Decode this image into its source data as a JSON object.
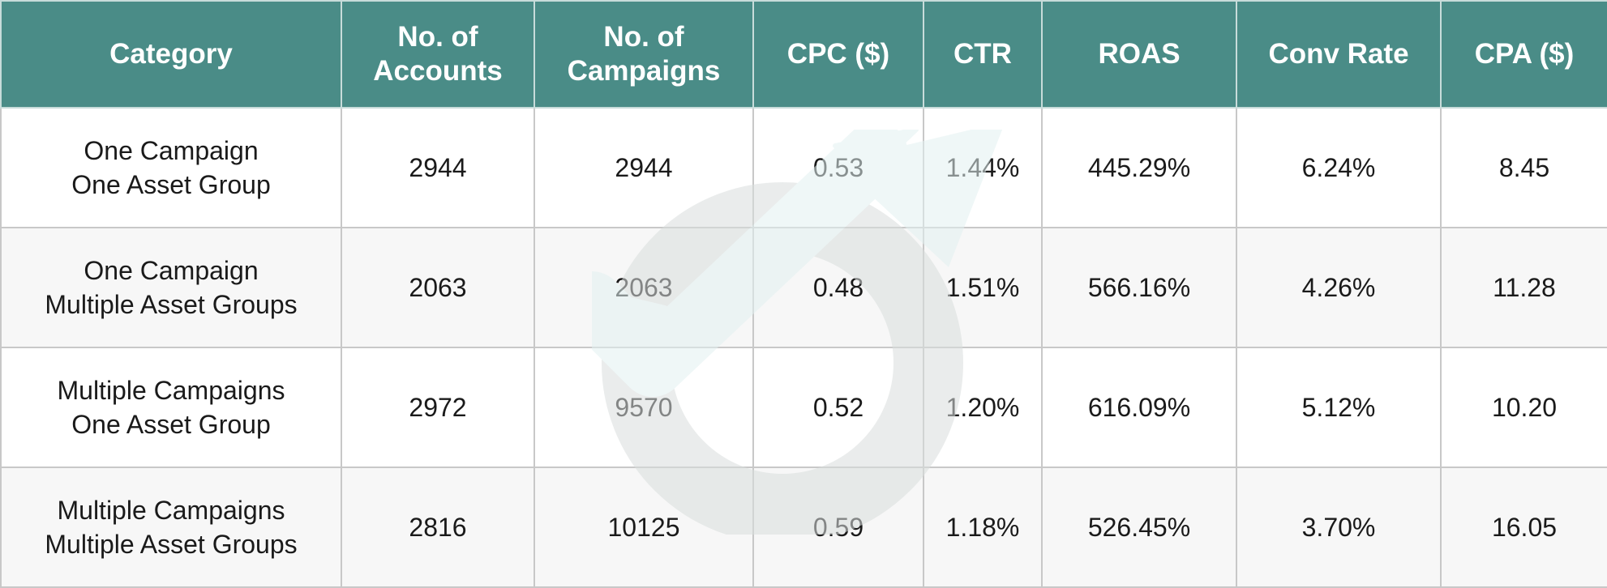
{
  "chart_data": {
    "type": "table",
    "title": "",
    "columns": [
      [
        "Category"
      ],
      [
        "No. of",
        "Accounts"
      ],
      [
        "No. of",
        "Campaigns"
      ],
      [
        "CPC ($)"
      ],
      [
        "CTR"
      ],
      [
        "ROAS"
      ],
      [
        "Conv Rate"
      ],
      [
        "CPA ($)"
      ]
    ],
    "rows": [
      {
        "category": [
          "One Campaign",
          "One Asset Group"
        ],
        "cells": [
          "2944",
          "2944",
          "0.53",
          "1.44%",
          "445.29%",
          "6.24%",
          "8.45"
        ]
      },
      {
        "category": [
          "One Campaign",
          "Multiple Asset Groups"
        ],
        "cells": [
          "2063",
          "2063",
          "0.48",
          "1.51%",
          "566.16%",
          "4.26%",
          "11.28"
        ]
      },
      {
        "category": [
          "Multiple Campaigns",
          "One Asset Group"
        ],
        "cells": [
          "2972",
          "9570",
          "0.52",
          "1.20%",
          "616.09%",
          "5.12%",
          "10.20"
        ]
      },
      {
        "category": [
          "Multiple Campaigns",
          "Multiple Asset Groups"
        ],
        "cells": [
          "2816",
          "10125",
          "0.59",
          "1.18%",
          "526.45%",
          "3.70%",
          "16.05"
        ]
      }
    ]
  },
  "colors": {
    "header_bg": "#4a8c87",
    "header_text": "#ffffff",
    "border": "#c8c8c8",
    "watermark_ring": "#d9dedd",
    "watermark_arrow": "#e3f1f1"
  },
  "watermark": {
    "icon": "target-arrow-logo-icon"
  }
}
